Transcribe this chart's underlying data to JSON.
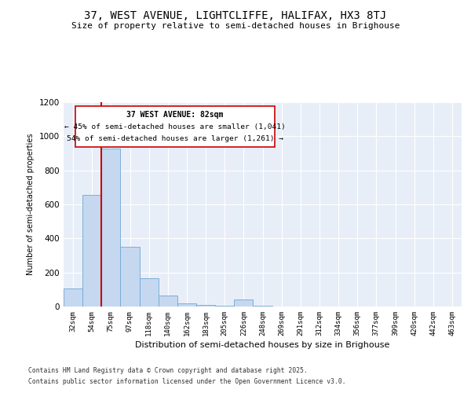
{
  "title1": "37, WEST AVENUE, LIGHTCLIFFE, HALIFAX, HX3 8TJ",
  "title2": "Size of property relative to semi-detached houses in Brighouse",
  "xlabel": "Distribution of semi-detached houses by size in Brighouse",
  "ylabel": "Number of semi-detached properties",
  "categories": [
    "32sqm",
    "54sqm",
    "75sqm",
    "97sqm",
    "118sqm",
    "140sqm",
    "162sqm",
    "183sqm",
    "205sqm",
    "226sqm",
    "248sqm",
    "269sqm",
    "291sqm",
    "312sqm",
    "334sqm",
    "356sqm",
    "377sqm",
    "399sqm",
    "420sqm",
    "442sqm",
    "463sqm"
  ],
  "values": [
    105,
    655,
    930,
    350,
    165,
    65,
    20,
    10,
    5,
    40,
    5,
    0,
    0,
    0,
    0,
    0,
    0,
    0,
    0,
    0,
    0
  ],
  "bar_color": "#c5d8f0",
  "bar_edge_color": "#6fa8d5",
  "vline_color": "#cc0000",
  "vline_x": 1.5,
  "annotation_title": "37 WEST AVENUE: 82sqm",
  "annotation_line1": "← 45% of semi-detached houses are smaller (1,041)",
  "annotation_line2": "54% of semi-detached houses are larger (1,261) →",
  "annotation_box_color": "#cc0000",
  "ylim": [
    0,
    1200
  ],
  "yticks": [
    0,
    200,
    400,
    600,
    800,
    1000,
    1200
  ],
  "footer1": "Contains HM Land Registry data © Crown copyright and database right 2025.",
  "footer2": "Contains public sector information licensed under the Open Government Licence v3.0.",
  "bg_color": "#ffffff",
  "plot_bg_color": "#e8eef8",
  "grid_color": "#ffffff"
}
